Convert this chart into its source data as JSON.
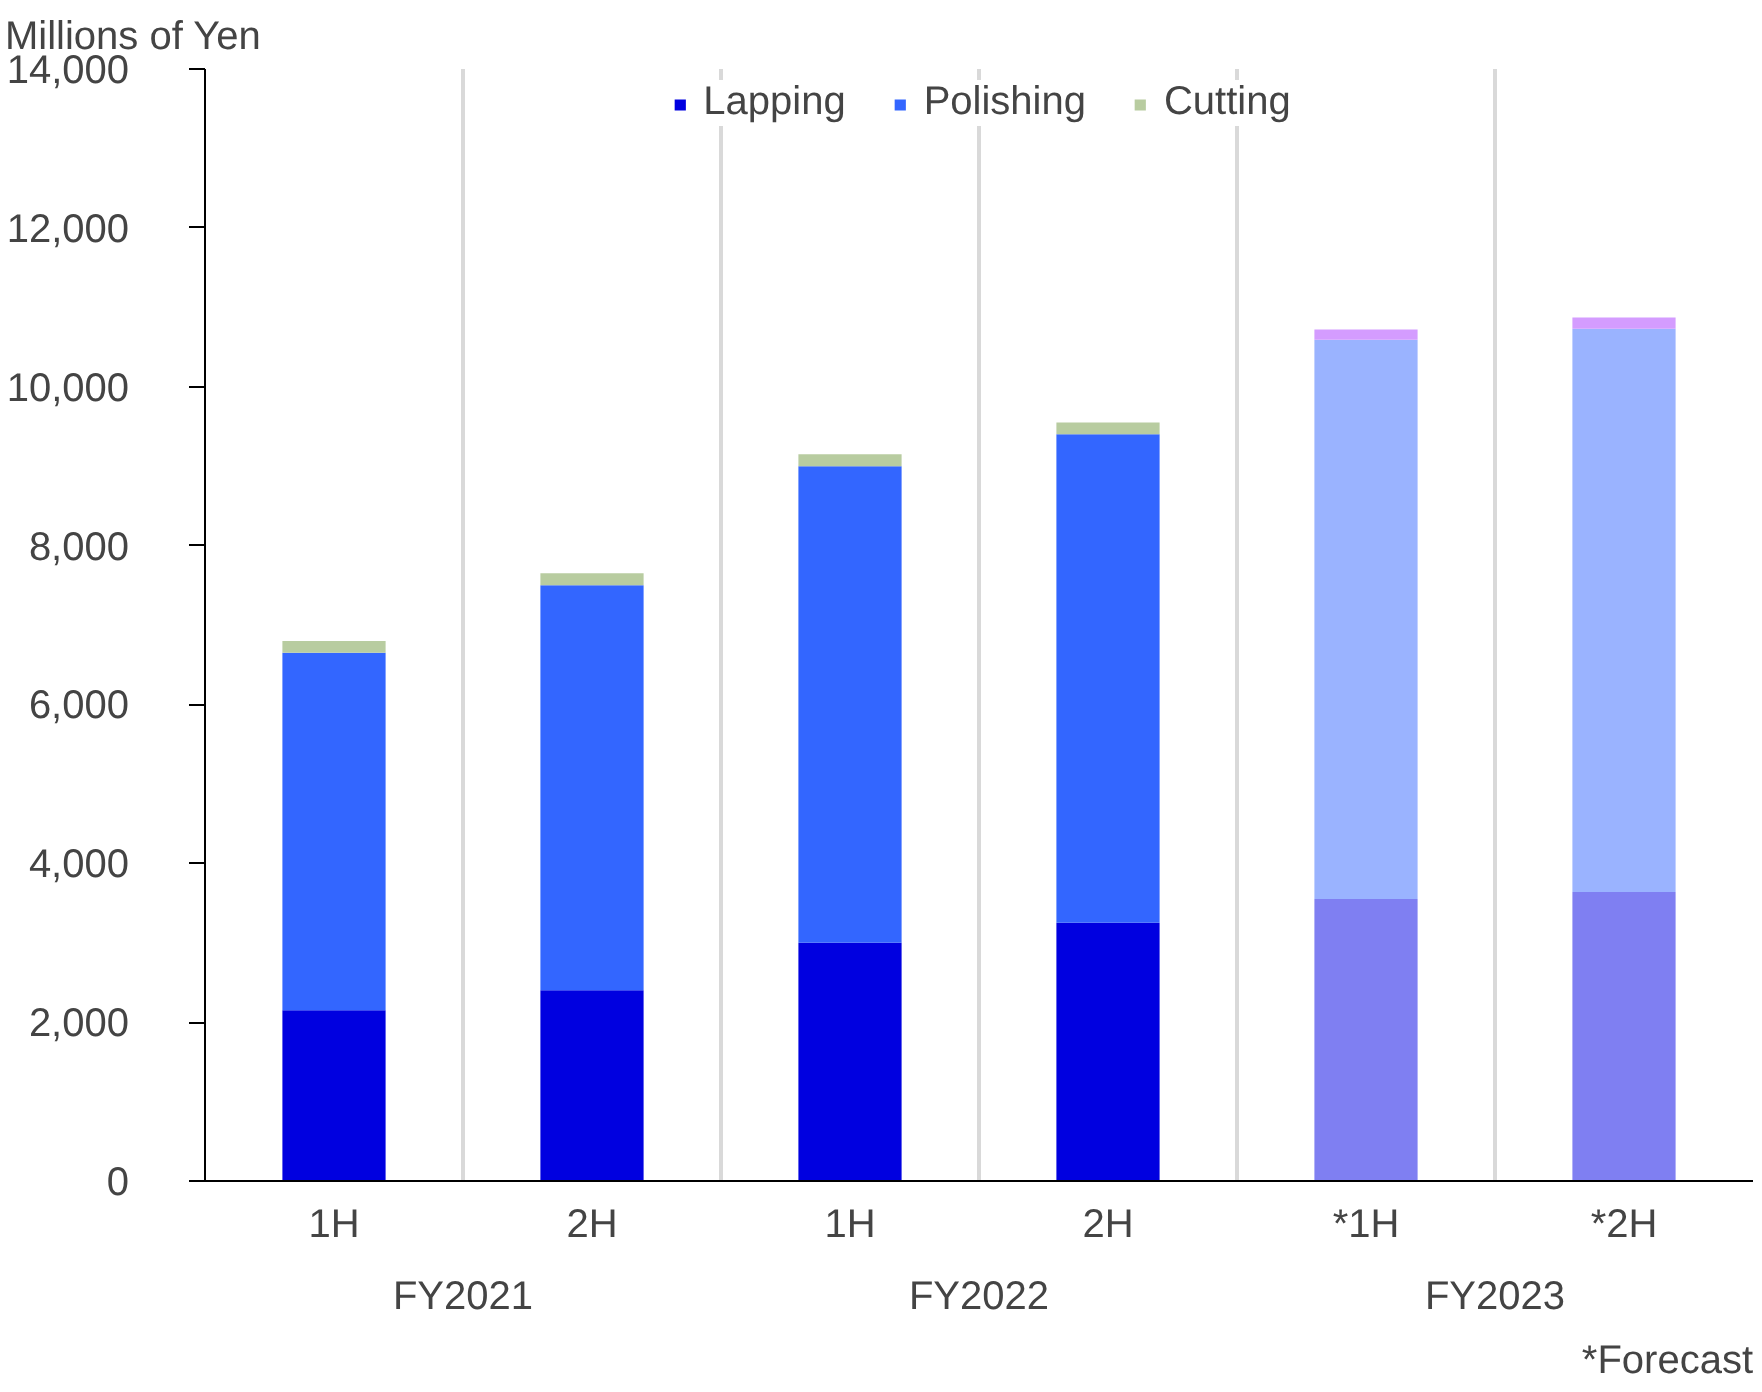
{
  "chart_data": {
    "type": "bar",
    "title": "Millions of Yen",
    "stacked": true,
    "categories": [
      "1H",
      "2H",
      "1H",
      "2H",
      "*1H",
      "*2H"
    ],
    "series": [
      {
        "name": "Lapping",
        "color": "#0000e0",
        "colors": [
          "#0000e0",
          "#0000e0",
          "#0000e0",
          "#0000e0",
          "#7f7ff2",
          "#7f7ff2"
        ],
        "values": [
          2150,
          2400,
          3000,
          3250,
          3550,
          3640
        ]
      },
      {
        "name": "Polishing",
        "color": "#3366ff",
        "colors": [
          "#3366ff",
          "#3366ff",
          "#3366ff",
          "#3366ff",
          "#9ab3ff",
          "#9ab3ff"
        ],
        "values": [
          4500,
          5100,
          6000,
          6150,
          7040,
          7090
        ]
      },
      {
        "name": "Cutting",
        "color": "#b8cca0",
        "colors": [
          "#b8cca0",
          "#b8cca0",
          "#b8cca0",
          "#b8cca0",
          "#d49cff",
          "#d49cff"
        ],
        "values": [
          150,
          150,
          150,
          150,
          130,
          140
        ]
      }
    ],
    "ylim": [
      0,
      14000
    ],
    "yticks": [
      {
        "value": 0,
        "label": "0"
      },
      {
        "value": 2000,
        "label": "2,000"
      },
      {
        "value": 4000,
        "label": "4,000"
      },
      {
        "value": 6000,
        "label": "6,000"
      },
      {
        "value": 8000,
        "label": "8,000"
      },
      {
        "value": 10000,
        "label": "10,000"
      },
      {
        "value": 12000,
        "label": "12,000"
      },
      {
        "value": 14000,
        "label": "14,000"
      }
    ],
    "grid": "x",
    "legend": "top",
    "annotations": [
      "FY2021",
      "FY2022",
      "FY2023",
      "*Forecast"
    ]
  }
}
